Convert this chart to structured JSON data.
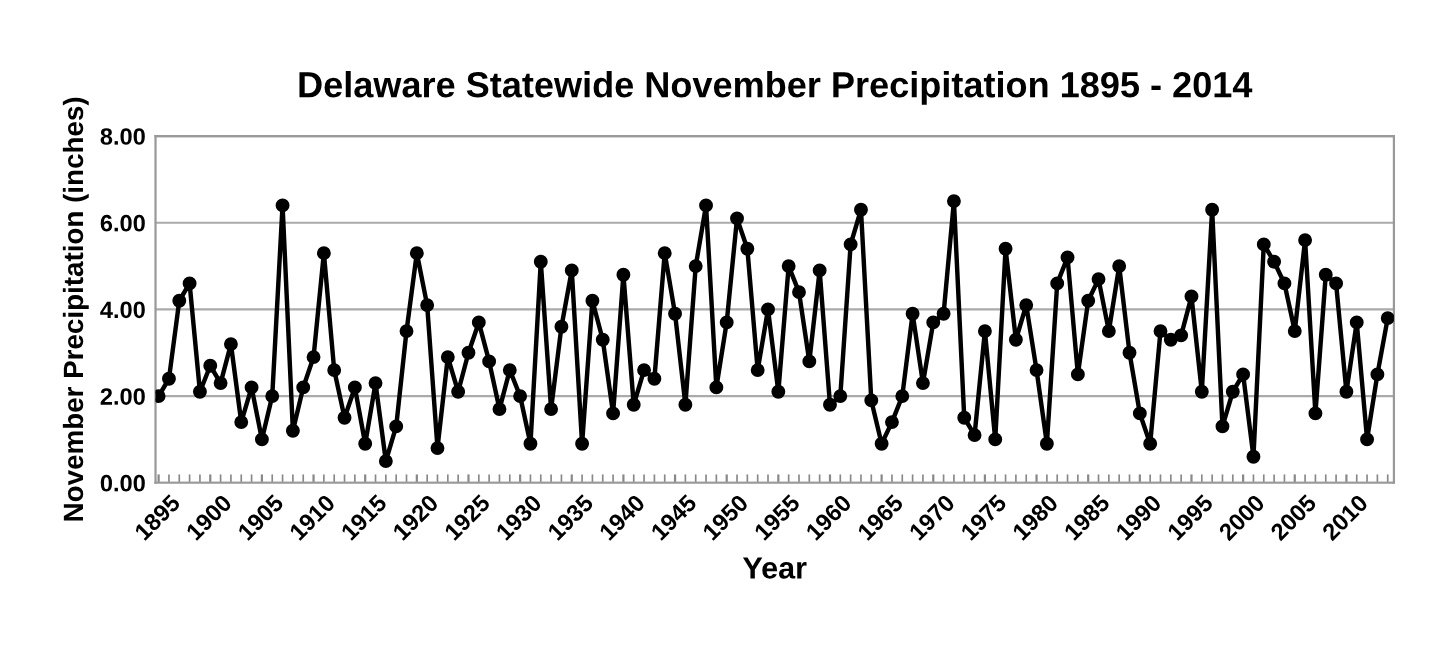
{
  "chart_data": {
    "type": "line",
    "title": "Delaware Statewide November Precipitation 1895 - 2014",
    "xlabel": "Year",
    "ylabel": "November Precipitation (inches)",
    "x": [
      1895,
      1896,
      1897,
      1898,
      1899,
      1900,
      1901,
      1902,
      1903,
      1904,
      1905,
      1906,
      1907,
      1908,
      1909,
      1910,
      1911,
      1912,
      1913,
      1914,
      1915,
      1916,
      1917,
      1918,
      1919,
      1920,
      1921,
      1922,
      1923,
      1924,
      1925,
      1926,
      1927,
      1928,
      1929,
      1930,
      1931,
      1932,
      1933,
      1934,
      1935,
      1936,
      1937,
      1938,
      1939,
      1940,
      1941,
      1942,
      1943,
      1944,
      1945,
      1946,
      1947,
      1948,
      1949,
      1950,
      1951,
      1952,
      1953,
      1954,
      1955,
      1956,
      1957,
      1958,
      1959,
      1960,
      1961,
      1962,
      1963,
      1964,
      1965,
      1966,
      1967,
      1968,
      1969,
      1970,
      1971,
      1972,
      1973,
      1974,
      1975,
      1976,
      1977,
      1978,
      1979,
      1980,
      1981,
      1982,
      1983,
      1984,
      1985,
      1986,
      1987,
      1988,
      1989,
      1990,
      1991,
      1992,
      1993,
      1994,
      1995,
      1996,
      1997,
      1998,
      1999,
      2000,
      2001,
      2002,
      2003,
      2004,
      2005,
      2006,
      2007,
      2008,
      2009,
      2010,
      2011,
      2012,
      2013,
      2014
    ],
    "series": [
      {
        "color": "#000000",
        "values": [
          2.0,
          2.4,
          4.2,
          4.6,
          2.1,
          2.7,
          2.3,
          3.2,
          1.4,
          2.2,
          1.0,
          2.0,
          6.4,
          1.2,
          2.2,
          2.9,
          5.3,
          2.6,
          1.5,
          2.2,
          0.9,
          2.3,
          0.5,
          1.3,
          3.5,
          5.3,
          4.1,
          0.8,
          2.9,
          2.1,
          3.0,
          3.7,
          2.8,
          1.7,
          2.6,
          2.0,
          0.9,
          5.1,
          1.7,
          3.6,
          4.9,
          0.9,
          4.2,
          3.3,
          1.6,
          4.8,
          1.8,
          2.6,
          2.4,
          5.3,
          3.9,
          1.8,
          5.0,
          6.4,
          2.2,
          3.7,
          6.1,
          5.4,
          2.6,
          4.0,
          2.1,
          5.0,
          4.4,
          2.8,
          4.9,
          1.8,
          2.0,
          5.5,
          6.3,
          1.9,
          0.9,
          1.4,
          2.0,
          3.9,
          2.3,
          3.7,
          3.9,
          6.5,
          1.5,
          1.1,
          3.5,
          1.0,
          5.4,
          3.3,
          4.1,
          2.6,
          0.9,
          4.6,
          5.2,
          2.5,
          4.2,
          4.7,
          3.5,
          5.0,
          3.0,
          1.6,
          0.9,
          3.5,
          3.3,
          3.4,
          4.3,
          2.1,
          6.3,
          1.3,
          2.1,
          2.5,
          0.6,
          5.5,
          5.1,
          4.6,
          3.5,
          5.6,
          1.6,
          4.8,
          4.6,
          2.1,
          3.7,
          1.0,
          2.5,
          3.8
        ]
      }
    ],
    "xlim": [
      1894.7,
      2014.6
    ],
    "xticks": [
      1895,
      1900,
      1905,
      1910,
      1915,
      1920,
      1925,
      1930,
      1935,
      1940,
      1945,
      1950,
      1955,
      1960,
      1965,
      1970,
      1975,
      1980,
      1985,
      1990,
      1995,
      2000,
      2005,
      2010
    ],
    "ylim": [
      0,
      8
    ],
    "yticks": [
      {
        "value": 0,
        "label": "0.00"
      },
      {
        "value": 2,
        "label": "2.00"
      },
      {
        "value": 4,
        "label": "4.00"
      },
      {
        "value": 6,
        "label": "6.00"
      },
      {
        "value": 8,
        "label": "8.00"
      }
    ],
    "grid": "y",
    "marker": "circle",
    "line_style": "solid"
  }
}
